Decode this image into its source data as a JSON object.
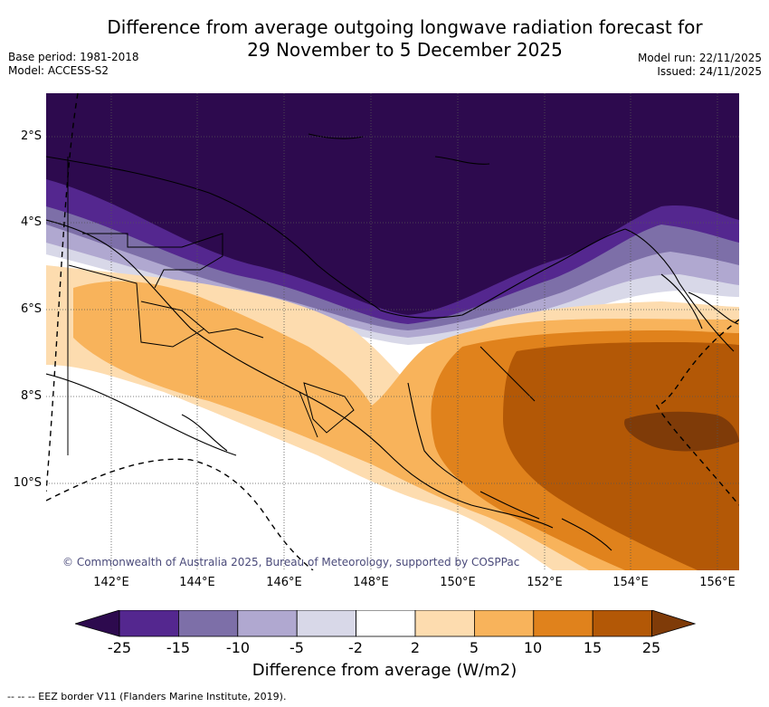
{
  "title": {
    "line1": "Difference from average outgoing longwave radiation forecast for",
    "line2": "29 November to 5 December 2025"
  },
  "meta": {
    "base_period": "Base period: 1981-2018",
    "model": "Model: ACCESS-S2",
    "model_run": "Model run: 22/11/2025",
    "issued": "Issued: 24/11/2025"
  },
  "axes": {
    "lat_labels": [
      "2°S",
      "4°S",
      "6°S",
      "8°S",
      "10°S"
    ],
    "lon_labels": [
      "142°E",
      "144°E",
      "146°E",
      "148°E",
      "150°E",
      "152°E",
      "154°E",
      "156°E"
    ]
  },
  "copyright": "© Commonwealth of Australia 2025, Bureau of Meteorology, supported by COSPPac",
  "colorbar": {
    "label": "Difference from average (W/m2)",
    "ticks": [
      "-25",
      "-15",
      "-10",
      "-5",
      "-2",
      "2",
      "5",
      "10",
      "15",
      "25"
    ],
    "colors": [
      "#2d0a4e",
      "#54278f",
      "#7d6fa8",
      "#b0a8d0",
      "#d8d8e8",
      "#ffffff",
      "#fddcaf",
      "#f8b35b",
      "#e0821c",
      "#b35806",
      "#7f3b08"
    ]
  },
  "footnote": "-- -- -- EEZ border V11 (Flanders Marine Institute, 2019)."
}
